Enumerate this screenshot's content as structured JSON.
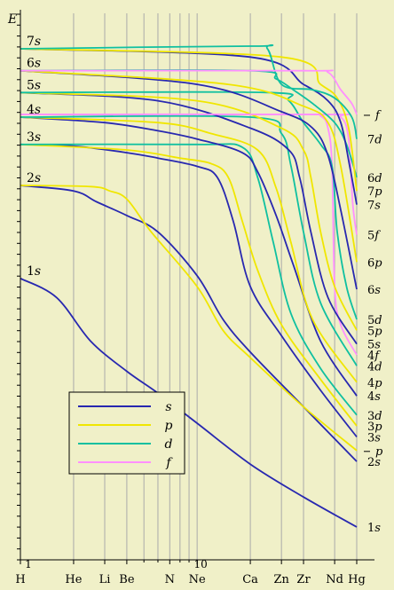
{
  "chart_data": {
    "type": "line",
    "title": "",
    "ylabel": "E",
    "xlabel": "",
    "x_scale": "log",
    "xlim": [
      1,
      80
    ],
    "grid": true,
    "legend_position": "bottom-left",
    "colors": {
      "s": "#2828b0",
      "p": "#f0e600",
      "d": "#10c0a0",
      "f": "#ff90ff",
      "background": "#f0f0c8",
      "grid": "#aaaaaa"
    },
    "x_ticks": [
      {
        "z": 1,
        "label": "H"
      },
      {
        "z": 2,
        "label": "He"
      },
      {
        "z": 3,
        "label": "Li"
      },
      {
        "z": 4,
        "label": "Be"
      },
      {
        "z": 7,
        "label": "N"
      },
      {
        "z": 10,
        "label": "Ne"
      },
      {
        "z": 20,
        "label": "Ca"
      },
      {
        "z": 30,
        "label": "Zn"
      },
      {
        "z": 40,
        "label": "Zr"
      },
      {
        "z": 60,
        "label": "Nd"
      },
      {
        "z": 80,
        "label": "Hg"
      }
    ],
    "x_minor_ticks": [
      5,
      6,
      8,
      9
    ],
    "x_number_labels": [
      {
        "z": 1,
        "label": "1"
      },
      {
        "z": 10,
        "label": "10"
      }
    ],
    "left_labels": [
      {
        "text": "7s",
        "y": 0.935
      },
      {
        "text": "6s",
        "y": 0.895
      },
      {
        "text": "5s",
        "y": 0.855
      },
      {
        "text": "4s",
        "y": 0.81
      },
      {
        "text": "3s",
        "y": 0.76
      },
      {
        "text": "2s",
        "y": 0.685
      },
      {
        "text": "1s",
        "y": 0.515
      }
    ],
    "right_labels": [
      {
        "text": "f",
        "type": "f",
        "y": 0.815,
        "dash": true
      },
      {
        "text": "7d",
        "type": "d",
        "y": 0.77
      },
      {
        "text": "6d",
        "type": "d",
        "y": 0.7
      },
      {
        "text": "7p",
        "type": "p",
        "y": 0.675
      },
      {
        "text": "7s",
        "type": "s",
        "y": 0.65
      },
      {
        "text": "5f",
        "type": "f",
        "y": 0.595
      },
      {
        "text": "6p",
        "type": "p",
        "y": 0.545
      },
      {
        "text": "6s",
        "type": "s",
        "y": 0.495
      },
      {
        "text": "5d",
        "type": "d",
        "y": 0.44
      },
      {
        "text": "5p",
        "type": "p",
        "y": 0.42
      },
      {
        "text": "5s",
        "type": "s",
        "y": 0.395
      },
      {
        "text": "4f",
        "type": "f",
        "y": 0.375
      },
      {
        "text": "4d",
        "type": "d",
        "y": 0.355
      },
      {
        "text": "4p",
        "type": "p",
        "y": 0.325
      },
      {
        "text": "4s",
        "type": "s",
        "y": 0.3
      },
      {
        "text": "3d",
        "type": "d",
        "y": 0.265
      },
      {
        "text": "3p",
        "type": "p",
        "y": 0.245
      },
      {
        "text": "3s",
        "type": "s",
        "y": 0.225
      },
      {
        "text": "p",
        "type": "p",
        "y": 0.2,
        "dash": true
      },
      {
        "text": "2s",
        "type": "s",
        "y": 0.18
      },
      {
        "text": "1s",
        "type": "s",
        "y": 0.06
      }
    ],
    "legend": [
      {
        "label": "s",
        "type": "s"
      },
      {
        "label": "p",
        "type": "p"
      },
      {
        "label": "d",
        "type": "d"
      },
      {
        "label": "f",
        "type": "f"
      }
    ],
    "series": [
      {
        "name": "1s",
        "type": "s",
        "points": [
          [
            1,
            0.515
          ],
          [
            1.6,
            0.48
          ],
          [
            2.5,
            0.4
          ],
          [
            4,
            0.345
          ],
          [
            6,
            0.305
          ],
          [
            10,
            0.25
          ],
          [
            20,
            0.175
          ],
          [
            40,
            0.115
          ],
          [
            80,
            0.06
          ]
        ]
      },
      {
        "name": "2s",
        "type": "s",
        "points": [
          [
            1,
            0.685
          ],
          [
            2,
            0.675
          ],
          [
            2.7,
            0.655
          ],
          [
            4,
            0.63
          ],
          [
            6,
            0.6
          ],
          [
            10,
            0.52
          ],
          [
            14,
            0.44
          ],
          [
            20,
            0.38
          ],
          [
            40,
            0.28
          ],
          [
            80,
            0.18
          ]
        ]
      },
      {
        "name": "2p",
        "type": "p",
        "points": [
          [
            1,
            0.685
          ],
          [
            2.5,
            0.683
          ],
          [
            3.2,
            0.675
          ],
          [
            4,
            0.66
          ],
          [
            5.5,
            0.6
          ],
          [
            10,
            0.5
          ],
          [
            14,
            0.42
          ],
          [
            20,
            0.37
          ],
          [
            40,
            0.28
          ],
          [
            80,
            0.2
          ]
        ]
      },
      {
        "name": "3s",
        "type": "s",
        "points": [
          [
            1,
            0.76
          ],
          [
            2,
            0.757
          ],
          [
            4,
            0.745
          ],
          [
            6,
            0.735
          ],
          [
            10,
            0.72
          ],
          [
            13,
            0.7
          ],
          [
            16,
            0.62
          ],
          [
            20,
            0.5
          ],
          [
            30,
            0.41
          ],
          [
            50,
            0.31
          ],
          [
            80,
            0.225
          ]
        ]
      },
      {
        "name": "3p",
        "type": "p",
        "points": [
          [
            1,
            0.76
          ],
          [
            4,
            0.75
          ],
          [
            8,
            0.735
          ],
          [
            12,
            0.725
          ],
          [
            15,
            0.7
          ],
          [
            18,
            0.62
          ],
          [
            22,
            0.53
          ],
          [
            30,
            0.43
          ],
          [
            50,
            0.33
          ],
          [
            80,
            0.245
          ]
        ]
      },
      {
        "name": "3d",
        "type": "d",
        "points": [
          [
            1,
            0.76
          ],
          [
            10,
            0.76
          ],
          [
            18,
            0.755
          ],
          [
            22,
            0.7
          ],
          [
            27,
            0.58
          ],
          [
            34,
            0.45
          ],
          [
            50,
            0.35
          ],
          [
            80,
            0.265
          ]
        ]
      },
      {
        "name": "4s",
        "type": "s",
        "points": [
          [
            1,
            0.81
          ],
          [
            3,
            0.8
          ],
          [
            6,
            0.785
          ],
          [
            10,
            0.77
          ],
          [
            18,
            0.745
          ],
          [
            22,
            0.71
          ],
          [
            28,
            0.63
          ],
          [
            35,
            0.54
          ],
          [
            50,
            0.4
          ],
          [
            80,
            0.3
          ]
        ]
      },
      {
        "name": "4p",
        "type": "p",
        "points": [
          [
            1,
            0.81
          ],
          [
            6,
            0.8
          ],
          [
            12,
            0.78
          ],
          [
            22,
            0.75
          ],
          [
            28,
            0.68
          ],
          [
            34,
            0.58
          ],
          [
            45,
            0.44
          ],
          [
            80,
            0.325
          ]
        ]
      },
      {
        "name": "4d",
        "type": "d",
        "points": [
          [
            1,
            0.81
          ],
          [
            20,
            0.81
          ],
          [
            30,
            0.78
          ],
          [
            34,
            0.72
          ],
          [
            40,
            0.6
          ],
          [
            50,
            0.47
          ],
          [
            80,
            0.355
          ]
        ]
      },
      {
        "name": "4f",
        "type": "f",
        "points": [
          [
            1,
            0.815
          ],
          [
            40,
            0.815
          ],
          [
            50,
            0.812
          ],
          [
            55,
            0.79
          ],
          [
            58,
            0.72
          ],
          [
            60,
            0.5
          ],
          [
            65,
            0.43
          ],
          [
            80,
            0.375
          ]
        ]
      },
      {
        "name": "5s",
        "type": "s",
        "points": [
          [
            1,
            0.855
          ],
          [
            6,
            0.84
          ],
          [
            20,
            0.79
          ],
          [
            33,
            0.75
          ],
          [
            38,
            0.7
          ],
          [
            44,
            0.6
          ],
          [
            55,
            0.48
          ],
          [
            80,
            0.395
          ]
        ]
      },
      {
        "name": "5p",
        "type": "p",
        "points": [
          [
            1,
            0.855
          ],
          [
            10,
            0.84
          ],
          [
            30,
            0.79
          ],
          [
            40,
            0.75
          ],
          [
            44,
            0.7
          ],
          [
            50,
            0.6
          ],
          [
            60,
            0.5
          ],
          [
            80,
            0.42
          ]
        ]
      },
      {
        "name": "5d",
        "type": "d",
        "points": [
          [
            1,
            0.855
          ],
          [
            25,
            0.855
          ],
          [
            33,
            0.84
          ],
          [
            40,
            0.8
          ],
          [
            50,
            0.76
          ],
          [
            58,
            0.72
          ],
          [
            62,
            0.6
          ],
          [
            70,
            0.5
          ],
          [
            80,
            0.44
          ]
        ]
      },
      {
        "name": "5f",
        "type": "f",
        "points": [
          [
            1,
            0.815
          ],
          [
            50,
            0.815
          ],
          [
            65,
            0.81
          ],
          [
            72,
            0.77
          ],
          [
            76,
            0.65
          ],
          [
            80,
            0.595
          ]
        ]
      },
      {
        "name": "6s",
        "type": "s",
        "points": [
          [
            1,
            0.895
          ],
          [
            10,
            0.87
          ],
          [
            30,
            0.82
          ],
          [
            45,
            0.79
          ],
          [
            55,
            0.74
          ],
          [
            65,
            0.64
          ],
          [
            80,
            0.495
          ]
        ]
      },
      {
        "name": "6p",
        "type": "p",
        "points": [
          [
            1,
            0.895
          ],
          [
            15,
            0.87
          ],
          [
            40,
            0.83
          ],
          [
            55,
            0.8
          ],
          [
            65,
            0.72
          ],
          [
            80,
            0.545
          ]
        ]
      },
      {
        "name": "6d",
        "type": "d",
        "points": [
          [
            1,
            0.895
          ],
          [
            20,
            0.895
          ],
          [
            28,
            0.88
          ],
          [
            35,
            0.86
          ],
          [
            45,
            0.835
          ],
          [
            60,
            0.8
          ],
          [
            70,
            0.76
          ],
          [
            80,
            0.7
          ]
        ]
      },
      {
        "name": "7s",
        "type": "s",
        "points": [
          [
            1,
            0.935
          ],
          [
            20,
            0.92
          ],
          [
            40,
            0.87
          ],
          [
            55,
            0.84
          ],
          [
            65,
            0.8
          ],
          [
            73,
            0.72
          ],
          [
            80,
            0.65
          ]
        ]
      },
      {
        "name": "7p",
        "type": "p",
        "points": [
          [
            1,
            0.935
          ],
          [
            30,
            0.92
          ],
          [
            50,
            0.87
          ],
          [
            62,
            0.845
          ],
          [
            72,
            0.79
          ],
          [
            80,
            0.675
          ]
        ]
      },
      {
        "name": "7d",
        "type": "d",
        "points": [
          [
            1,
            0.935
          ],
          [
            20,
            0.94
          ],
          [
            25,
            0.935
          ],
          [
            30,
            0.87
          ],
          [
            45,
            0.86
          ],
          [
            60,
            0.845
          ],
          [
            75,
            0.81
          ],
          [
            80,
            0.77
          ]
        ]
      },
      {
        "name": "f",
        "type": "f",
        "points": [
          [
            1,
            0.895
          ],
          [
            40,
            0.895
          ],
          [
            55,
            0.892
          ],
          [
            65,
            0.86
          ],
          [
            75,
            0.835
          ],
          [
            80,
            0.815
          ]
        ]
      }
    ]
  }
}
